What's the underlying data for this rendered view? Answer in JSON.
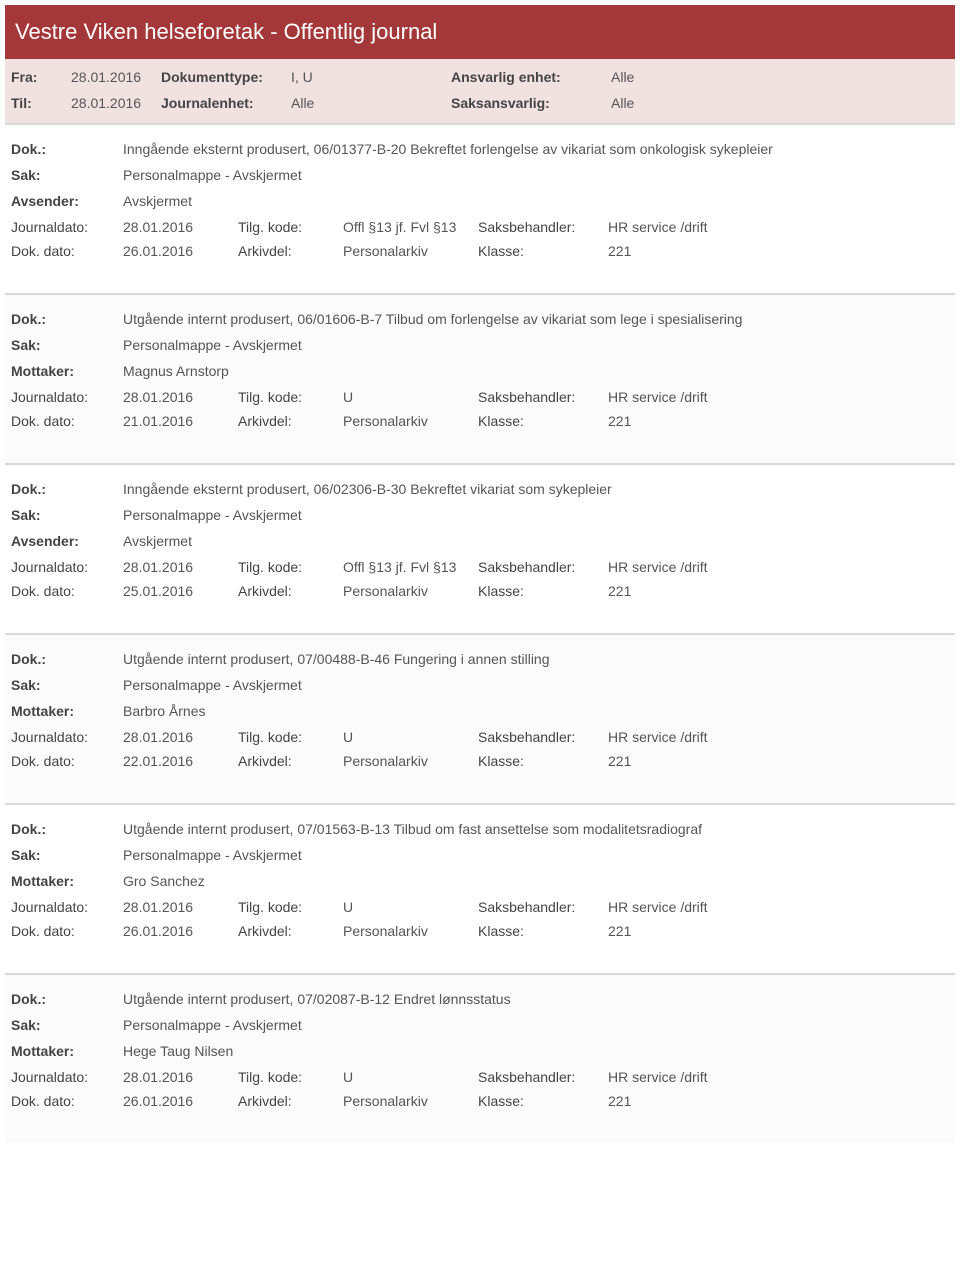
{
  "header": {
    "title": "Vestre Viken helseforetak - Offentlig journal"
  },
  "filters": {
    "fra_label": "Fra:",
    "fra_value": "28.01.2016",
    "til_label": "Til:",
    "til_value": "28.01.2016",
    "doktype_label": "Dokumenttype:",
    "doktype_value": "I, U",
    "journalenhet_label": "Journalenhet:",
    "journalenhet_value": "Alle",
    "ansvarlig_label": "Ansvarlig enhet:",
    "ansvarlig_value": "Alle",
    "saksansvarlig_label": "Saksansvarlig:",
    "saksansvarlig_value": "Alle"
  },
  "labels": {
    "dok": "Dok.:",
    "sak": "Sak:",
    "avsender": "Avsender:",
    "mottaker": "Mottaker:",
    "journaldato": "Journaldato:",
    "tilgkode": "Tilg. kode:",
    "saksbehandler": "Saksbehandler:",
    "dokdato": "Dok. dato:",
    "arkivdel": "Arkivdel:",
    "klasse": "Klasse:"
  },
  "entries": [
    {
      "dok": "Inngående eksternt produsert, 06/01377-B-20 Bekreftet forlengelse av vikariat som onkologisk sykepleier",
      "sak": "Personalmappe - Avskjermet",
      "party_label": "Avsender:",
      "party_value": "Avskjermet",
      "journaldato": "28.01.2016",
      "tilgkode": "Offl §13 jf. Fvl §13",
      "saksbehandler": "HR service /drift",
      "dokdato": "26.01.2016",
      "arkivdel": "Personalarkiv",
      "klasse": "221"
    },
    {
      "dok": "Utgående internt produsert, 06/01606-B-7 Tilbud om forlengelse av vikariat som lege i spesialisering",
      "sak": "Personalmappe - Avskjermet",
      "party_label": "Mottaker:",
      "party_value": "Magnus Arnstorp",
      "journaldato": "28.01.2016",
      "tilgkode": "U",
      "saksbehandler": "HR service /drift",
      "dokdato": "21.01.2016",
      "arkivdel": "Personalarkiv",
      "klasse": "221"
    },
    {
      "dok": "Inngående eksternt produsert, 06/02306-B-30 Bekreftet vikariat som sykepleier",
      "sak": "Personalmappe - Avskjermet",
      "party_label": "Avsender:",
      "party_value": "Avskjermet",
      "journaldato": "28.01.2016",
      "tilgkode": "Offl §13 jf. Fvl §13",
      "saksbehandler": "HR service /drift",
      "dokdato": "25.01.2016",
      "arkivdel": "Personalarkiv",
      "klasse": "221"
    },
    {
      "dok": "Utgående internt produsert, 07/00488-B-46 Fungering i annen stilling",
      "sak": "Personalmappe - Avskjermet",
      "party_label": "Mottaker:",
      "party_value": "Barbro Årnes",
      "journaldato": "28.01.2016",
      "tilgkode": "U",
      "saksbehandler": "HR service /drift",
      "dokdato": "22.01.2016",
      "arkivdel": "Personalarkiv",
      "klasse": "221"
    },
    {
      "dok": "Utgående internt produsert, 07/01563-B-13 Tilbud om fast ansettelse som modalitetsradiograf",
      "sak": "Personalmappe - Avskjermet",
      "party_label": "Mottaker:",
      "party_value": "Gro Sanchez",
      "journaldato": "28.01.2016",
      "tilgkode": "U",
      "saksbehandler": "HR service /drift",
      "dokdato": "26.01.2016",
      "arkivdel": "Personalarkiv",
      "klasse": "221"
    },
    {
      "dok": "Utgående internt produsert, 07/02087-B-12 Endret lønnsstatus",
      "sak": "Personalmappe - Avskjermet",
      "party_label": "Mottaker:",
      "party_value": "Hege Taug Nilsen",
      "journaldato": "28.01.2016",
      "tilgkode": "U",
      "saksbehandler": "HR service /drift",
      "dokdato": "26.01.2016",
      "arkivdel": "Personalarkiv",
      "klasse": "221"
    }
  ]
}
